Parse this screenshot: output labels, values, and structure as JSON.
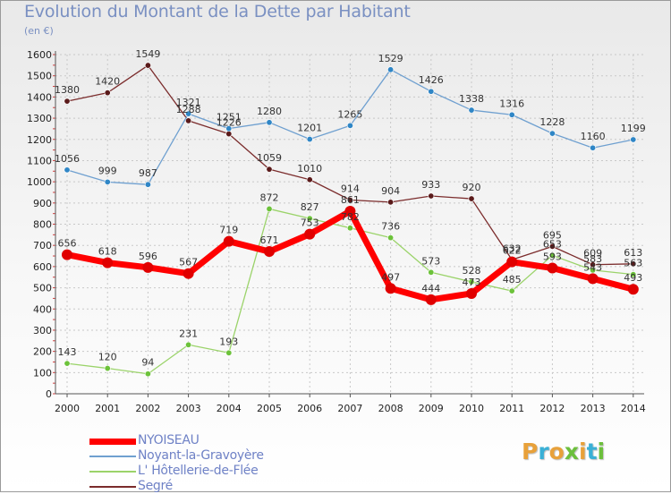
{
  "header": {
    "title": "Evolution du Montant de la Dette par Habitant",
    "unit": "(en €)"
  },
  "brand": {
    "logo_text": "Proxiti",
    "logo_letters": [
      {
        "ch": "P",
        "color": "#e8a13a"
      },
      {
        "ch": "r",
        "color": "#3ab0d6"
      },
      {
        "ch": "o",
        "color": "#e8a13a"
      },
      {
        "ch": "x",
        "color": "#6cbf3c"
      },
      {
        "ch": "i",
        "color": "#e8a13a"
      },
      {
        "ch": "t",
        "color": "#3ab0d6"
      },
      {
        "ch": "i",
        "color": "#6cbf3c"
      }
    ]
  },
  "chart_data": {
    "type": "line",
    "x": [
      "2000",
      "2001",
      "2002",
      "2003",
      "2004",
      "2005",
      "2006",
      "2007",
      "2008",
      "2009",
      "2010",
      "2011",
      "2012",
      "2013",
      "2014"
    ],
    "ylim": [
      0,
      1600
    ],
    "yticks": [
      0,
      100,
      200,
      300,
      400,
      500,
      600,
      700,
      800,
      900,
      1000,
      1100,
      1200,
      1300,
      1400,
      1500,
      1600
    ],
    "grid": true,
    "legend_position": "bottom-left",
    "series": [
      {
        "name": "Segré",
        "color": "#7b2c2c",
        "marker": "#5a1a1a",
        "width": 1.3,
        "values": [
          1380,
          1420,
          1549,
          1288,
          1226,
          1059,
          1010,
          914,
          904,
          933,
          920,
          632,
          695,
          609,
          613
        ],
        "labels": [
          "1380",
          "1420",
          "1549",
          "1288",
          "1226",
          "1059",
          "1010",
          "914",
          "904",
          "933",
          "920",
          "632",
          "695",
          "609",
          "613"
        ]
      },
      {
        "name": "L' Hôtellerie-de-Flée",
        "color": "#9bd36a",
        "marker": "#6cc23a",
        "width": 1.3,
        "values": [
          143,
          120,
          94,
          231,
          193,
          872,
          827,
          782,
          736,
          573,
          528,
          485,
          653,
          583,
          563
        ],
        "labels": [
          "143",
          "120",
          "94",
          "231",
          "193",
          "872",
          "827",
          "782",
          "736",
          "573",
          "528",
          "485",
          "653",
          "583",
          "563"
        ]
      },
      {
        "name": "Noyant-la-Gravoyère",
        "color": "#6fa0d0",
        "marker": "#2f86c6",
        "width": 1.3,
        "values": [
          1056,
          999,
          987,
          1321,
          1251,
          1280,
          1201,
          1265,
          1529,
          1426,
          1338,
          1316,
          1228,
          1160,
          1199
        ],
        "labels": [
          "1056",
          "999",
          "987",
          "1321",
          "1251",
          "1280",
          "1201",
          "1265",
          "1529",
          "1426",
          "1338",
          "1316",
          "1228",
          "1160",
          "1199"
        ]
      },
      {
        "name": "NYOISEAU",
        "color": "#ff0000",
        "marker": "#e00000",
        "width": 7,
        "values": [
          656,
          618,
          596,
          567,
          719,
          671,
          753,
          861,
          497,
          444,
          473,
          622,
          593,
          543,
          493
        ],
        "labels": [
          "656",
          "618",
          "596",
          "567",
          "719",
          "671",
          "753",
          "861",
          "497",
          "444",
          "473",
          "622",
          "593",
          "543",
          "493"
        ]
      }
    ]
  },
  "legend": {
    "items": [
      {
        "label": "NYOISEAU",
        "color": "#ff0000",
        "thickness": 7
      },
      {
        "label": "Noyant-la-Gravoyère",
        "color": "#6fa0d0",
        "thickness": 2
      },
      {
        "label": "L' Hôtellerie-de-Flée",
        "color": "#9bd36a",
        "thickness": 2
      },
      {
        "label": "Segré",
        "color": "#7b2c2c",
        "thickness": 2
      }
    ]
  }
}
